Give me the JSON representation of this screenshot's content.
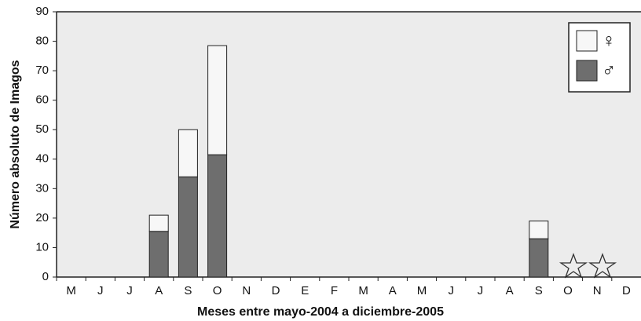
{
  "chart_data": {
    "type": "stacked-bar",
    "x_label": "Meses entre mayo-2004 a diciembre-2005",
    "y_label": "Número absoluto de Imagos",
    "categories": [
      "M",
      "J",
      "J",
      "A",
      "S",
      "O",
      "N",
      "D",
      "E",
      "F",
      "M",
      "A",
      "M",
      "J",
      "J",
      "A",
      "S",
      "O",
      "N",
      "D"
    ],
    "series": [
      {
        "name": "♀",
        "color": "#f7f7f7",
        "values": [
          null,
          null,
          null,
          5.5,
          16,
          37,
          null,
          null,
          null,
          null,
          null,
          null,
          null,
          null,
          null,
          null,
          6,
          null,
          null,
          null
        ]
      },
      {
        "name": "♂",
        "color": "#6e6e6e",
        "values": [
          null,
          null,
          null,
          15.5,
          34,
          41.5,
          null,
          null,
          null,
          null,
          null,
          null,
          null,
          null,
          null,
          null,
          13,
          null,
          null,
          null
        ]
      }
    ],
    "ylim": [
      0,
      90
    ],
    "yticks": [
      0,
      10,
      20,
      30,
      40,
      50,
      60,
      70,
      80,
      90
    ],
    "grid": false,
    "legend": "top-right"
  }
}
